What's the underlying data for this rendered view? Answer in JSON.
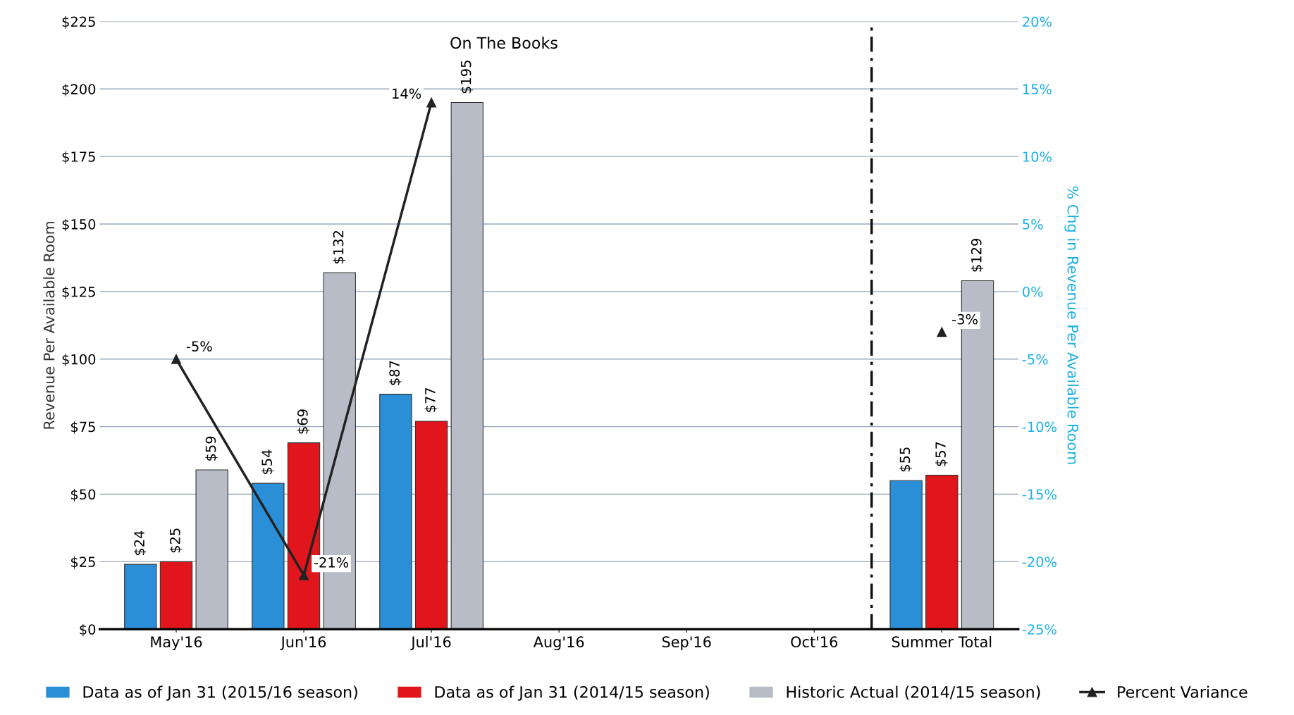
{
  "chart_data": {
    "type": "bar",
    "title": "On The Books",
    "categories": [
      "May'16",
      "Jun'16",
      "Jul'16",
      "Aug'16",
      "Sep'16",
      "Oct'16",
      "Summer Total"
    ],
    "series": [
      {
        "name": "Data as of Jan 31 (2015/16 season)",
        "color": "#2a8fd6",
        "values": [
          24,
          54,
          87,
          null,
          null,
          null,
          55
        ],
        "value_labels": [
          "$24",
          "$54",
          "$87",
          null,
          null,
          null,
          "$55"
        ]
      },
      {
        "name": "Data as of Jan 31 (2014/15 season)",
        "color": "#e0161c",
        "values": [
          25,
          69,
          77,
          null,
          null,
          null,
          57
        ],
        "value_labels": [
          "$25",
          "$69",
          "$77",
          null,
          null,
          null,
          "$57"
        ]
      },
      {
        "name": "Historic Actual (2014/15 season)",
        "color": "#b8bcc6",
        "values": [
          59,
          132,
          195,
          null,
          null,
          null,
          129
        ],
        "value_labels": [
          "$59",
          "$132",
          "$195",
          null,
          null,
          null,
          "$129"
        ]
      },
      {
        "name": "Percent Variance",
        "type": "line",
        "axis": "y2",
        "color": "#222222",
        "marker": "triangle",
        "values": [
          -5,
          -21,
          14,
          null,
          null,
          null,
          -3
        ],
        "value_labels": [
          "-5%",
          "-21%",
          "14%",
          null,
          null,
          null,
          "-3%"
        ]
      }
    ],
    "ylabel": "Revenue Per Available Room",
    "y2label": "% Chg in Revenue Per Available Room",
    "ylim": [
      0,
      225
    ],
    "yticks": [
      {
        "value": 0,
        "label": "$0"
      },
      {
        "value": 25,
        "label": "$25"
      },
      {
        "value": 50,
        "label": "$50"
      },
      {
        "value": 75,
        "label": "$75"
      },
      {
        "value": 100,
        "label": "$100"
      },
      {
        "value": 125,
        "label": "$125"
      },
      {
        "value": 150,
        "label": "$150"
      },
      {
        "value": 175,
        "label": "$175"
      },
      {
        "value": 200,
        "label": "$200"
      },
      {
        "value": 225,
        "label": "$225"
      }
    ],
    "y2lim": [
      -25,
      20
    ],
    "y2ticks": [
      {
        "value": -25,
        "label": "-25%"
      },
      {
        "value": -20,
        "label": "-20%"
      },
      {
        "value": -15,
        "label": "-15%"
      },
      {
        "value": -10,
        "label": "-10%"
      },
      {
        "value": -5,
        "label": "-5%"
      },
      {
        "value": 0,
        "label": "0%"
      },
      {
        "value": 5,
        "label": "5%"
      },
      {
        "value": 10,
        "label": "10%"
      },
      {
        "value": 15,
        "label": "15%"
      },
      {
        "value": 20,
        "label": "20%"
      }
    ],
    "grid": "y",
    "legend": "bottom"
  }
}
